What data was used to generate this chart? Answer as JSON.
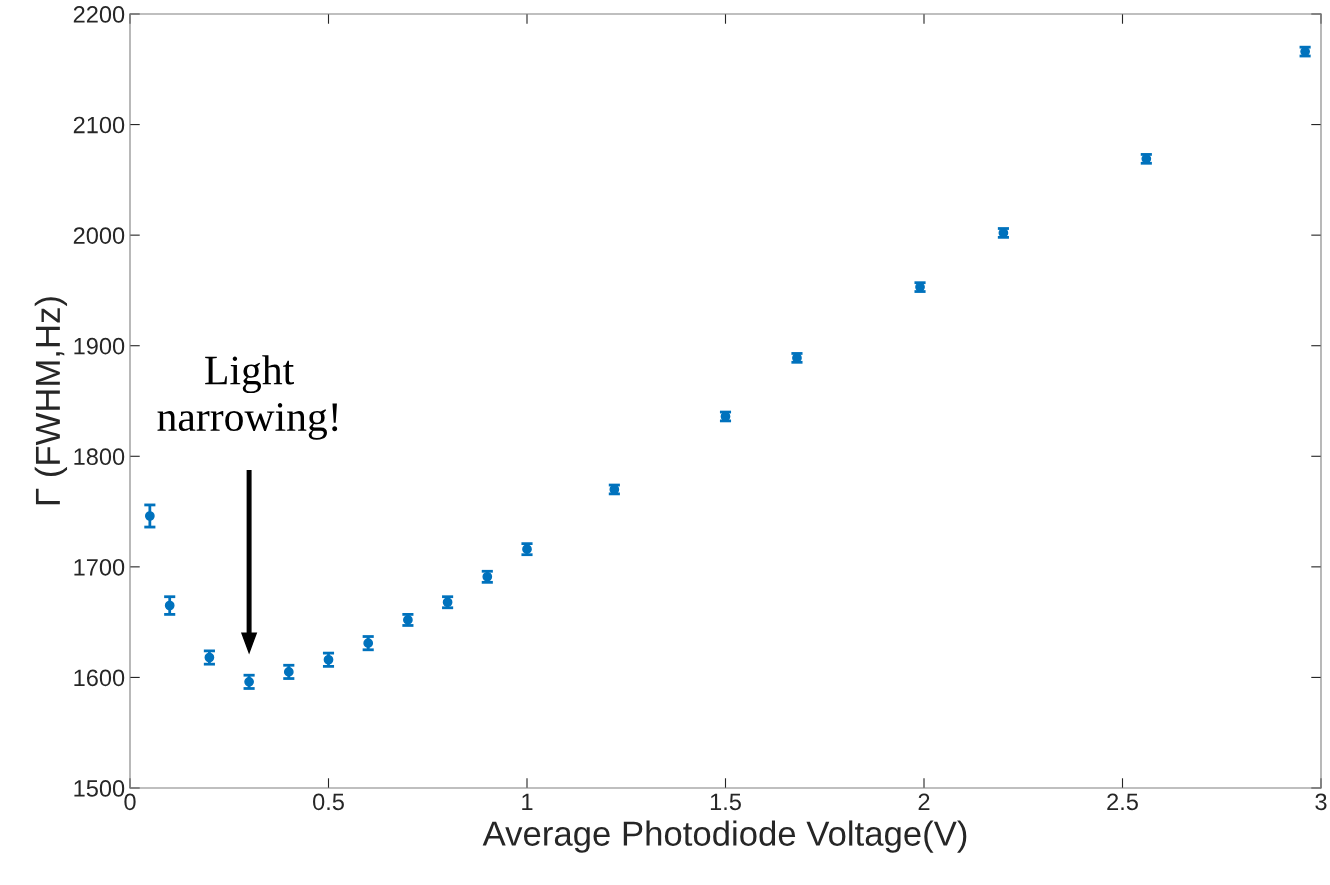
{
  "chart_data": {
    "type": "scatter",
    "xlabel": "Average Photodiode Voltage(V)",
    "ylabel": "Γ (FWHM,Hz)",
    "x": [
      0.05,
      0.1,
      0.2,
      0.3,
      0.4,
      0.5,
      0.6,
      0.7,
      0.8,
      0.9,
      1.0,
      1.22,
      1.5,
      1.68,
      1.99,
      2.2,
      2.56,
      2.96
    ],
    "series": [
      {
        "color": "#0072bd",
        "values": [
          1746,
          1665,
          1618,
          1596,
          1605,
          1616,
          1631,
          1652,
          1668,
          1691,
          1716,
          1770,
          1836,
          1889,
          1953,
          2002,
          2069,
          2166
        ],
        "errors": [
          10,
          8,
          6,
          6,
          6,
          6,
          6,
          5,
          5,
          5,
          5,
          4,
          4,
          4,
          4,
          4,
          4,
          4
        ]
      }
    ],
    "xlim": [
      0,
      3
    ],
    "ylim": [
      1500,
      2200
    ],
    "xticks": [
      0,
      0.5,
      1,
      1.5,
      2,
      2.5,
      3
    ],
    "yticks": [
      1500,
      1600,
      1700,
      1800,
      1900,
      2000,
      2100,
      2200
    ],
    "marker": "circle",
    "grid": false,
    "annotations": [
      "Light\nnarrowing!"
    ]
  }
}
